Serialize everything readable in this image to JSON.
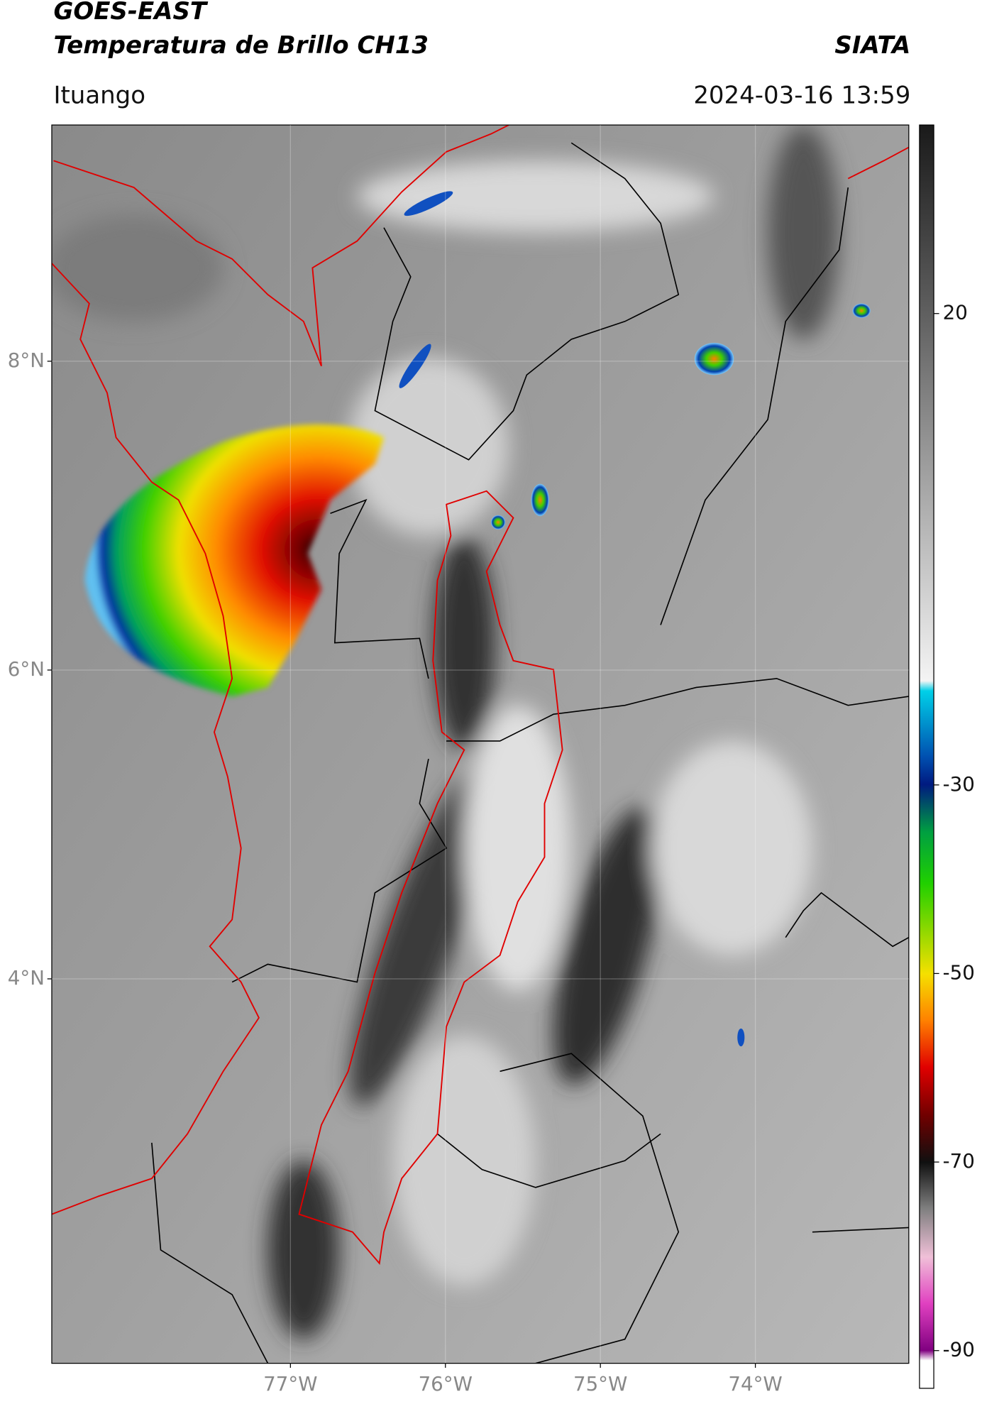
{
  "header": {
    "title": "GOES-EAST",
    "subtitle": "Temperatura de Brillo CH13",
    "source": "SIATA",
    "location": "Ituango",
    "datetime": "2024-03-16 13:59"
  },
  "map": {
    "xlim": [
      -78.54,
      -73.01
    ],
    "ylim": [
      1.51,
      9.53
    ],
    "xticks": [
      {
        "value": -77,
        "label": "77°W"
      },
      {
        "value": -76,
        "label": "76°W"
      },
      {
        "value": -75,
        "label": "75°W"
      },
      {
        "value": -74,
        "label": "74°W"
      }
    ],
    "yticks": [
      {
        "value": 8,
        "label": "8°N"
      },
      {
        "value": 6,
        "label": "6°N"
      },
      {
        "value": 4,
        "label": "4°N"
      }
    ],
    "grid": true
  },
  "colorbar": {
    "lim": [
      -94,
      40
    ],
    "ticks": [
      20,
      -30,
      -50,
      -70,
      -90
    ]
  }
}
